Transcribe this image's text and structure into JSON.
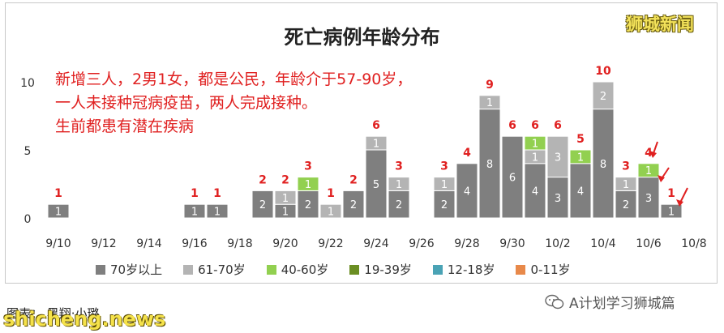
{
  "title": "死亡病例年龄分布",
  "brand": "狮城新闻",
  "note_lines": [
    "新增三人，2男1女，都是公民，年龄介于57-90岁，",
    "一人未接种冠病疫苗，两人完成接种。",
    "生前都患有潜在疾病"
  ],
  "footer": {
    "credit": "图表：  黑翔·小璐",
    "watermark": "shicheng.news",
    "wechat": "A计划学习狮城篇"
  },
  "colors": {
    "70+": "#7f7f7f",
    "61-70": "#b4b4b4",
    "40-60": "#92d050",
    "19-39": "#6b8e23",
    "12-18": "#4aa3b5",
    "0-11": "#e8894a",
    "total_label": "#e02020"
  },
  "chart_data": {
    "type": "bar",
    "stacked": true,
    "x_tick_labels": [
      "9/10",
      "9/12",
      "9/14",
      "9/16",
      "9/18",
      "9/20",
      "9/22",
      "9/24",
      "9/26",
      "9/28",
      "9/30",
      "10/2",
      "10/4",
      "10/6",
      "10/8"
    ],
    "y_ticks": [
      0,
      5,
      10
    ],
    "ylim": [
      0,
      11
    ],
    "categories": [
      "9/10",
      "9/11",
      "9/12",
      "9/13",
      "9/14",
      "9/15",
      "9/16",
      "9/17",
      "9/18",
      "9/19",
      "9/20",
      "9/21",
      "9/22",
      "9/23",
      "9/24",
      "9/25",
      "9/26",
      "9/27",
      "9/28",
      "9/29",
      "9/30",
      "10/1",
      "10/2",
      "10/3",
      "10/4",
      "10/5",
      "10/6",
      "10/7"
    ],
    "series": [
      {
        "name": "70岁以上",
        "color_key": "70+",
        "values": [
          1,
          0,
          0,
          0,
          0,
          0,
          1,
          1,
          0,
          2,
          1,
          2,
          0,
          2,
          5,
          2,
          0,
          2,
          4,
          8,
          6,
          4,
          3,
          4,
          8,
          2,
          3,
          1
        ]
      },
      {
        "name": "61-70岁",
        "color_key": "61-70",
        "values": [
          0,
          0,
          0,
          0,
          0,
          0,
          0,
          0,
          0,
          0,
          1,
          0,
          1,
          0,
          1,
          1,
          0,
          1,
          0,
          1,
          0,
          1,
          3,
          0,
          2,
          1,
          0,
          0
        ]
      },
      {
        "name": "40-60岁",
        "color_key": "40-60",
        "values": [
          0,
          0,
          0,
          0,
          0,
          0,
          0,
          0,
          0,
          0,
          0,
          1,
          0,
          0,
          0,
          0,
          0,
          0,
          0,
          0,
          0,
          1,
          0,
          1,
          0,
          0,
          1,
          0
        ]
      },
      {
        "name": "19-39岁",
        "color_key": "19-39",
        "values": [
          0,
          0,
          0,
          0,
          0,
          0,
          0,
          0,
          0,
          0,
          0,
          0,
          0,
          0,
          0,
          0,
          0,
          0,
          0,
          0,
          0,
          0,
          0,
          0,
          0,
          0,
          0,
          0
        ]
      },
      {
        "name": "12-18岁",
        "color_key": "12-18",
        "values": [
          0,
          0,
          0,
          0,
          0,
          0,
          0,
          0,
          0,
          0,
          0,
          0,
          0,
          0,
          0,
          0,
          0,
          0,
          0,
          0,
          0,
          0,
          0,
          0,
          0,
          0,
          0,
          0
        ]
      },
      {
        "name": "0-11岁",
        "color_key": "0-11",
        "values": [
          0,
          0,
          0,
          0,
          0,
          0,
          0,
          0,
          0,
          0,
          0,
          0,
          0,
          0,
          0,
          0,
          0,
          0,
          0,
          0,
          0,
          0,
          0,
          0,
          0,
          0,
          0,
          0
        ]
      }
    ],
    "totals": [
      1,
      0,
      0,
      0,
      0,
      0,
      1,
      1,
      0,
      2,
      2,
      3,
      1,
      2,
      6,
      3,
      0,
      3,
      4,
      9,
      6,
      6,
      6,
      5,
      10,
      3,
      4,
      1
    ],
    "legend": [
      "70岁以上",
      "61-70岁",
      "40-60岁",
      "19-39岁",
      "12-18岁",
      "0-11岁"
    ],
    "legend_position": "bottom",
    "grid": false
  }
}
